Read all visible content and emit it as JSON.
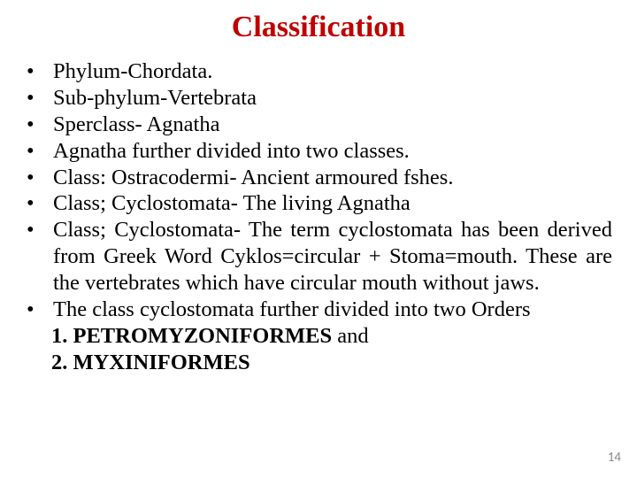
{
  "title": "Classification",
  "title_color": "#c00000",
  "text_color": "#000000",
  "background_color": "#ffffff",
  "page_number": "14",
  "page_number_color": "#8a8a8a",
  "font_family": "Times New Roman",
  "title_fontsize": 34,
  "body_fontsize": 24.5,
  "bullets": [
    {
      "text": "Phylum-Chordata.",
      "justify": false
    },
    {
      "text": "Sub-phylum-Vertebrata",
      "justify": false
    },
    {
      "text": "Sperclass- Agnatha",
      "justify": false
    },
    {
      "text": "Agnatha further divided into two classes.",
      "justify": false
    },
    {
      "text": "Class: Ostracodermi- Ancient armoured fshes.",
      "justify": false
    },
    {
      "text": "Class; Cyclostomata- The living Agnatha",
      "justify": false
    },
    {
      "text": "Class; Cyclostomata- The term cyclostomata has been derived from Greek Word Cyklos=circular + Stoma=mouth. These are the vertebrates which have circular mouth without jaws.",
      "justify": true
    }
  ],
  "last": {
    "lead": "The class cyclostomata further divided into two Orders",
    "line1_bold": "1. PETROMYZONIFORMES",
    "line1_tail": " and",
    "line2_bold": "2. MYXINIFORMES"
  }
}
